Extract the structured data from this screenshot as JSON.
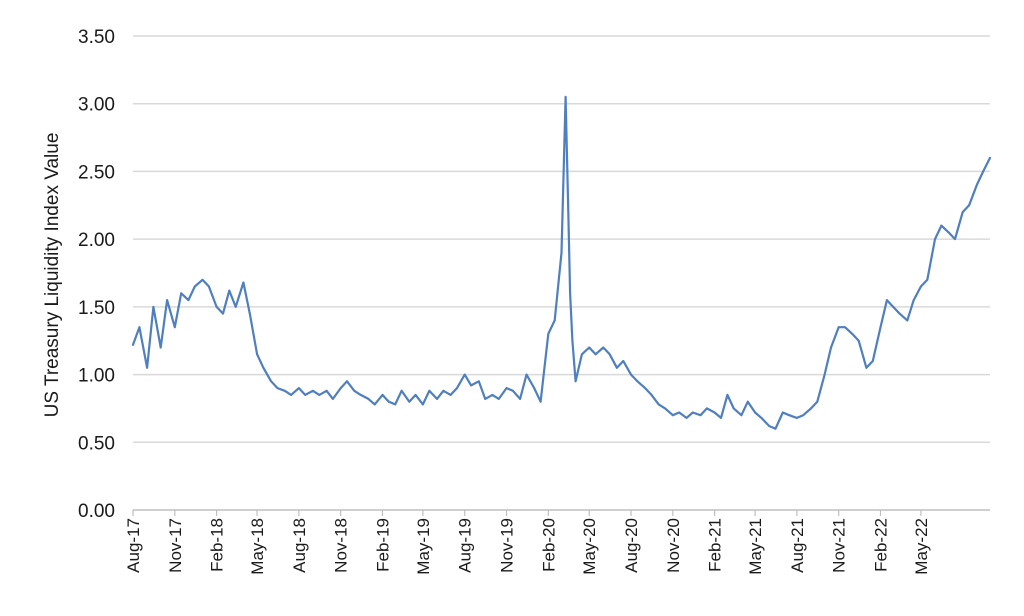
{
  "chart_data": {
    "type": "line",
    "title": "",
    "xlabel": "",
    "ylabel": "US Treasury Liquidity Index Value",
    "ylim": [
      0,
      3.5
    ],
    "yticks": [
      "0.00",
      "0.50",
      "1.00",
      "1.50",
      "2.00",
      "2.50",
      "3.00",
      "3.50"
    ],
    "xticks": [
      "Aug-17",
      "Nov-17",
      "Feb-18",
      "May-18",
      "Aug-18",
      "Nov-18",
      "Feb-19",
      "May-19",
      "Aug-19",
      "Nov-19",
      "Feb-20",
      "May-20",
      "Aug-20",
      "Nov-20",
      "Feb-21",
      "May-21",
      "Aug-21",
      "Nov-21",
      "Feb-22",
      "May-22"
    ],
    "grid": true,
    "legend": "none",
    "color": "#4f7fbf",
    "series": [
      {
        "name": "",
        "x": [
          "2017-08-01",
          "2017-08-15",
          "2017-09-01",
          "2017-09-15",
          "2017-10-01",
          "2017-10-15",
          "2017-11-01",
          "2017-11-15",
          "2017-12-01",
          "2017-12-15",
          "2018-01-01",
          "2018-01-15",
          "2018-02-01",
          "2018-02-15",
          "2018-03-01",
          "2018-03-15",
          "2018-04-01",
          "2018-04-15",
          "2018-05-01",
          "2018-05-15",
          "2018-06-01",
          "2018-06-15",
          "2018-07-01",
          "2018-07-15",
          "2018-08-01",
          "2018-08-15",
          "2018-09-01",
          "2018-09-15",
          "2018-10-01",
          "2018-10-15",
          "2018-11-01",
          "2018-11-15",
          "2018-12-01",
          "2018-12-15",
          "2019-01-01",
          "2019-01-15",
          "2019-02-01",
          "2019-02-15",
          "2019-03-01",
          "2019-03-15",
          "2019-04-01",
          "2019-04-15",
          "2019-05-01",
          "2019-05-15",
          "2019-06-01",
          "2019-06-15",
          "2019-07-01",
          "2019-07-15",
          "2019-08-01",
          "2019-08-15",
          "2019-09-01",
          "2019-09-15",
          "2019-10-01",
          "2019-10-15",
          "2019-11-01",
          "2019-11-15",
          "2019-12-01",
          "2019-12-15",
          "2020-01-01",
          "2020-01-15",
          "2020-02-01",
          "2020-02-15",
          "2020-03-01",
          "2020-03-10",
          "2020-03-16",
          "2020-03-20",
          "2020-03-25",
          "2020-04-01",
          "2020-04-15",
          "2020-05-01",
          "2020-05-15",
          "2020-06-01",
          "2020-06-15",
          "2020-07-01",
          "2020-07-15",
          "2020-08-01",
          "2020-08-15",
          "2020-09-01",
          "2020-09-15",
          "2020-10-01",
          "2020-10-15",
          "2020-11-01",
          "2020-11-15",
          "2020-12-01",
          "2020-12-15",
          "2021-01-01",
          "2021-01-15",
          "2021-02-01",
          "2021-02-15",
          "2021-03-01",
          "2021-03-15",
          "2021-04-01",
          "2021-04-15",
          "2021-05-01",
          "2021-05-15",
          "2021-06-01",
          "2021-06-15",
          "2021-07-01",
          "2021-07-15",
          "2021-08-01",
          "2021-08-15",
          "2021-09-01",
          "2021-09-15",
          "2021-10-01",
          "2021-10-15",
          "2021-11-01",
          "2021-11-15",
          "2021-12-01",
          "2021-12-15",
          "2022-01-01",
          "2022-01-15",
          "2022-02-01",
          "2022-02-15",
          "2022-03-01",
          "2022-03-15",
          "2022-04-01",
          "2022-04-15",
          "2022-05-01",
          "2022-05-15",
          "2022-06-01",
          "2022-06-15",
          "2022-07-01",
          "2022-07-15",
          "2022-08-01",
          "2022-08-15",
          "2022-09-01",
          "2022-09-15",
          "2022-09-30"
        ],
        "values": [
          1.22,
          1.35,
          1.05,
          1.5,
          1.2,
          1.55,
          1.35,
          1.6,
          1.55,
          1.65,
          1.7,
          1.65,
          1.5,
          1.45,
          1.62,
          1.5,
          1.68,
          1.45,
          1.15,
          1.05,
          0.95,
          0.9,
          0.88,
          0.85,
          0.9,
          0.85,
          0.88,
          0.85,
          0.88,
          0.82,
          0.9,
          0.95,
          0.88,
          0.85,
          0.82,
          0.78,
          0.85,
          0.8,
          0.78,
          0.88,
          0.8,
          0.85,
          0.78,
          0.88,
          0.82,
          0.88,
          0.85,
          0.9,
          1.0,
          0.92,
          0.95,
          0.82,
          0.85,
          0.82,
          0.9,
          0.88,
          0.82,
          1.0,
          0.9,
          0.8,
          1.3,
          1.4,
          1.9,
          3.05,
          2.2,
          1.6,
          1.25,
          0.95,
          1.15,
          1.2,
          1.15,
          1.2,
          1.15,
          1.05,
          1.1,
          1.0,
          0.95,
          0.9,
          0.85,
          0.78,
          0.75,
          0.7,
          0.72,
          0.68,
          0.72,
          0.7,
          0.75,
          0.72,
          0.68,
          0.85,
          0.75,
          0.7,
          0.8,
          0.72,
          0.68,
          0.62,
          0.6,
          0.72,
          0.7,
          0.68,
          0.7,
          0.75,
          0.8,
          1.0,
          1.2,
          1.35,
          1.35,
          1.3,
          1.25,
          1.05,
          1.1,
          1.35,
          1.55,
          1.5,
          1.45,
          1.4,
          1.55,
          1.65,
          1.7,
          2.0,
          2.1,
          2.05,
          2.0,
          2.2,
          2.25,
          2.4,
          2.5,
          2.6
        ]
      }
    ]
  }
}
